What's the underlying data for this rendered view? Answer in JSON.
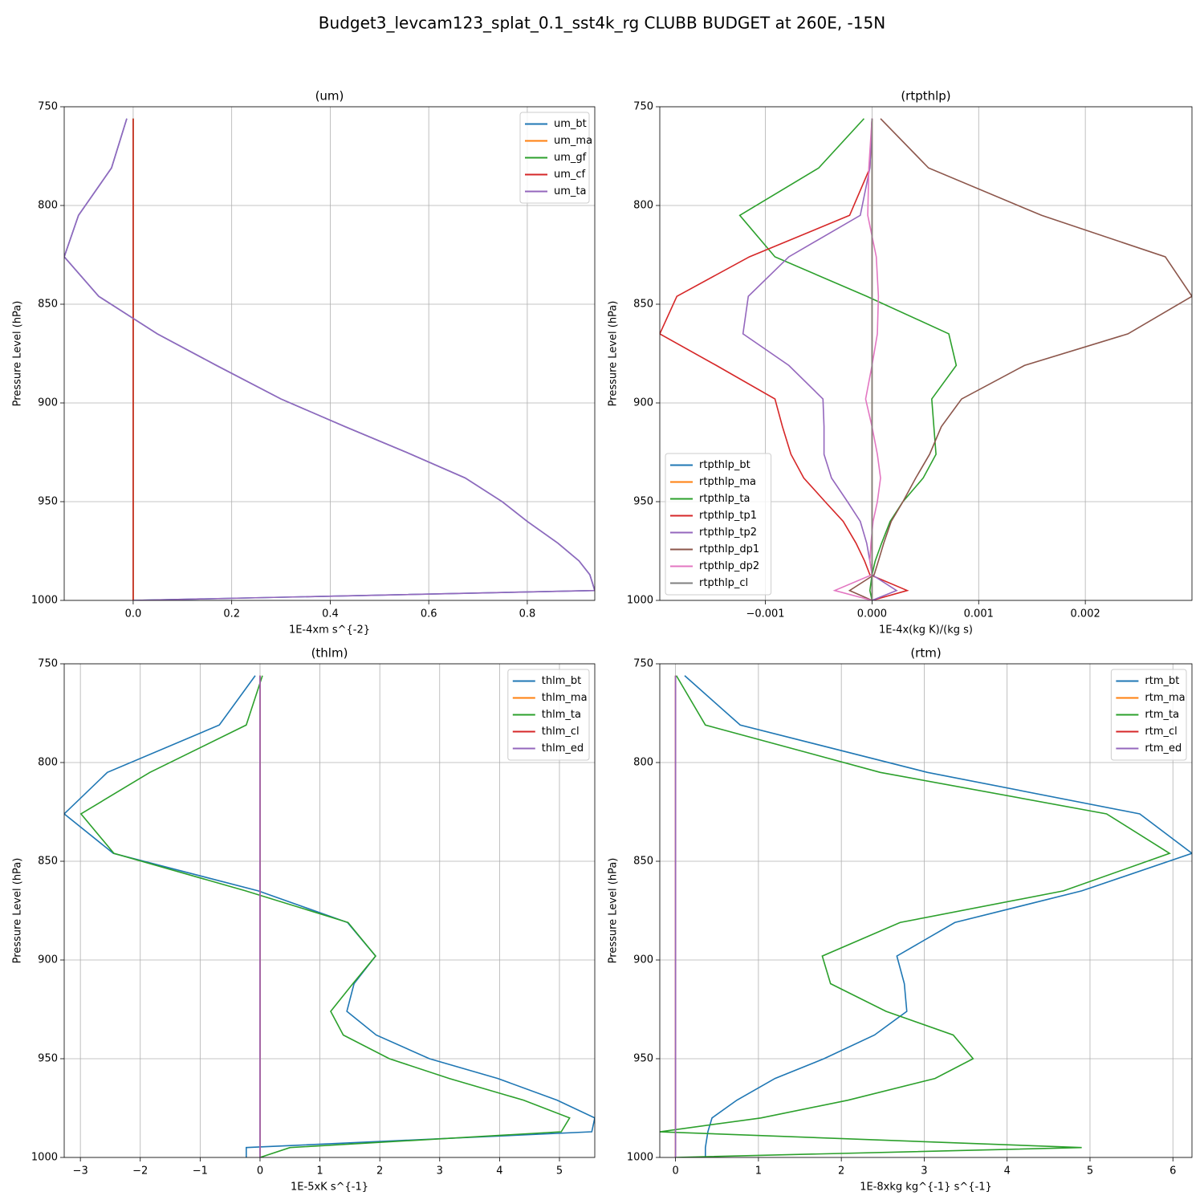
{
  "title": "Budget3_levcam123_splat_0.1_sst4k_rg CLUBB BUDGET at 260E, -15N",
  "chart_data": [
    {
      "type": "line",
      "title": "(um)",
      "xlabel": "1E-4xm s^{-2}",
      "ylabel": "Pressure Level (hPa)",
      "y": [
        756,
        781,
        805,
        826,
        846,
        865,
        881,
        898,
        912,
        926,
        938,
        950,
        960,
        971,
        980,
        987,
        995,
        1000
      ],
      "xlim": [
        -0.14,
        0.937
      ],
      "xticks": [
        {
          "value": 0,
          "label": "0.0"
        },
        0.2,
        0.4,
        0.6,
        0.8
      ],
      "ylim": [
        1000,
        750
      ],
      "yticks": [
        750,
        800,
        850,
        900,
        950,
        1000
      ],
      "grid": true,
      "legend": "upper right",
      "series": [
        {
          "name": "um_bt",
          "color": "#1f77b4",
          "values": [
            -0.013,
            -0.044,
            -0.111,
            -0.14,
            -0.07,
            0.049,
            0.169,
            0.3,
            0.43,
            0.564,
            0.674,
            0.749,
            0.8,
            0.862,
            0.905,
            0.927,
            0.937,
            0
          ]
        },
        {
          "name": "um_ma",
          "color": "#ff7f0e",
          "values": [
            0,
            0,
            0,
            0,
            0,
            0,
            0,
            0,
            0,
            0,
            0,
            0,
            0,
            0,
            0,
            0,
            0,
            0
          ]
        },
        {
          "name": "um_gf",
          "color": "#2ca02c",
          "values": [
            0,
            0,
            0,
            0,
            0,
            0,
            0,
            0,
            0,
            0,
            0,
            0,
            0,
            0,
            0,
            0,
            0,
            0
          ]
        },
        {
          "name": "um_cf",
          "color": "#d62728",
          "values": [
            0,
            0,
            0,
            0,
            0,
            0,
            0,
            0,
            0,
            0,
            0,
            0,
            0,
            0,
            0,
            0,
            0,
            0
          ]
        },
        {
          "name": "um_ta",
          "color": "#9467bd",
          "values": [
            -0.013,
            -0.044,
            -0.111,
            -0.14,
            -0.07,
            0.049,
            0.169,
            0.3,
            0.43,
            0.564,
            0.674,
            0.749,
            0.8,
            0.862,
            0.905,
            0.927,
            0.937,
            0
          ]
        }
      ]
    },
    {
      "type": "line",
      "title": "(rtpthlp)",
      "xlabel": "1E-4x(kg K)/(kg s)",
      "ylabel": "Pressure Level (hPa)",
      "y": [
        756,
        781,
        805,
        826,
        846,
        865,
        881,
        898,
        912,
        926,
        938,
        950,
        960,
        971,
        980,
        987,
        995,
        1000
      ],
      "xlim": [
        -0.00199,
        0.003
      ],
      "xticks": [
        {
          "value": -0.001,
          "label": "−0.001"
        },
        {
          "value": 0,
          "label": "0.000"
        },
        0.001,
        0.002
      ],
      "ylim": [
        1000,
        750
      ],
      "yticks": [
        750,
        800,
        850,
        900,
        950,
        1000
      ],
      "grid": true,
      "legend": "lower left",
      "series": [
        {
          "name": "rtpthlp_bt",
          "color": "#1f77b4",
          "values": [
            0,
            0,
            0,
            0,
            0,
            0,
            0,
            0,
            0,
            0,
            0,
            0,
            0,
            0,
            0,
            0,
            0,
            0
          ]
        },
        {
          "name": "rtpthlp_ma",
          "color": "#ff7f0e",
          "values": [
            0,
            0,
            0,
            0,
            0,
            0,
            0,
            0,
            0,
            0,
            0,
            0,
            0,
            0,
            0,
            0,
            0,
            0
          ]
        },
        {
          "name": "rtpthlp_ta",
          "color": "#2ca02c",
          "values": [
            -7.5e-05,
            -0.0005,
            -0.00124,
            -0.00091,
            -5e-05,
            0.00072,
            0.00079,
            0.00056,
            0.00058,
            0.0006,
            0.00048,
            0.00029,
            0.00017,
            9e-05,
            3e-05,
            0,
            -2e-05,
            0
          ]
        },
        {
          "name": "rtpthlp_tp1",
          "color": "#d62728",
          "values": [
            0,
            -2e-05,
            -0.00021,
            -0.00115,
            -0.00183,
            -0.00199,
            -0.00146,
            -0.00091,
            -0.00084,
            -0.00076,
            -0.00064,
            -0.00044,
            -0.00027,
            -0.00015,
            -7e-05,
            -2e-05,
            0.00033,
            0
          ]
        },
        {
          "name": "rtpthlp_tp2",
          "color": "#9467bd",
          "values": [
            0,
            -2e-05,
            -0.00011,
            -0.00078,
            -0.00116,
            -0.00121,
            -0.00078,
            -0.00046,
            -0.00045,
            -0.00045,
            -0.00038,
            -0.00023,
            -0.00011,
            -5e-05,
            -2e-05,
            0,
            0.00023,
            0
          ]
        },
        {
          "name": "rtpthlp_dp1",
          "color": "#8c564b",
          "values": [
            8e-05,
            0.00053,
            0.00159,
            0.00275,
            0.003,
            0.0024,
            0.00143,
            0.00084,
            0.00065,
            0.00054,
            0.00041,
            0.00029,
            0.00018,
            0.00011,
            6e-05,
            2e-05,
            -0.00021,
            0
          ]
        },
        {
          "name": "rtpthlp_dp2",
          "color": "#e377c2",
          "values": [
            0,
            -3e-05,
            -4e-05,
            4e-05,
            6e-05,
            5e-05,
            0,
            -6e-05,
            0,
            5e-05,
            8e-05,
            5e-05,
            1e-05,
            -1e-05,
            -2e-05,
            0,
            -0.00035,
            0
          ]
        },
        {
          "name": "rtpthlp_cl",
          "color": "#7f7f7f",
          "values": [
            0,
            0,
            0,
            0,
            0,
            0,
            0,
            0,
            0,
            0,
            0,
            0,
            0,
            0,
            0,
            0,
            0,
            0
          ]
        }
      ]
    },
    {
      "type": "line",
      "title": "(thlm)",
      "xlabel": "1E-5xK s^{-1}",
      "ylabel": "Pressure Level (hPa)",
      "y": [
        756,
        781,
        805,
        826,
        846,
        865,
        881,
        898,
        912,
        926,
        938,
        950,
        960,
        971,
        980,
        987,
        995,
        1000
      ],
      "xlim": [
        -3.27,
        5.59
      ],
      "xticks": [
        {
          "value": -3,
          "label": "−3"
        },
        {
          "value": -2,
          "label": "−2"
        },
        {
          "value": -1,
          "label": "−1"
        },
        0,
        1,
        2,
        3,
        4,
        5
      ],
      "ylim": [
        1000,
        750
      ],
      "yticks": [
        750,
        800,
        850,
        900,
        950,
        1000
      ],
      "grid": true,
      "legend": "upper right",
      "series": [
        {
          "name": "thlm_bt",
          "color": "#1f77b4",
          "values": [
            -0.08,
            -0.68,
            -2.55,
            -3.27,
            -2.45,
            -0.03,
            1.46,
            1.93,
            1.57,
            1.45,
            1.94,
            2.83,
            3.97,
            4.96,
            5.59,
            5.54,
            -0.23,
            -0.23
          ]
        },
        {
          "name": "thlm_ma",
          "color": "#ff7f0e",
          "values": [
            0,
            0,
            0,
            0,
            0,
            0,
            0,
            0,
            0,
            0,
            0,
            0,
            0,
            0,
            0,
            0,
            0,
            0
          ]
        },
        {
          "name": "thlm_ta",
          "color": "#2ca02c",
          "values": [
            0.04,
            -0.23,
            -1.84,
            -2.99,
            -2.44,
            -0.24,
            1.47,
            1.93,
            1.55,
            1.18,
            1.39,
            2.16,
            3.16,
            4.4,
            5.17,
            5.03,
            0.5,
            0
          ]
        },
        {
          "name": "thlm_cl",
          "color": "#d62728",
          "values": [
            0,
            0,
            0,
            0,
            0,
            0,
            0,
            0,
            0,
            0,
            0,
            0,
            0,
            0,
            0,
            0,
            0,
            0
          ]
        },
        {
          "name": "thlm_ed",
          "color": "#9467bd",
          "values": [
            0,
            0,
            0,
            0,
            0,
            0,
            0,
            0,
            0,
            0,
            0,
            0,
            0,
            0,
            0,
            0,
            0,
            0
          ]
        }
      ]
    },
    {
      "type": "line",
      "title": "(rtm)",
      "xlabel": "1E-8xkg kg^{-1} s^{-1}",
      "ylabel": "Pressure Level (hPa)",
      "y": [
        756,
        781,
        805,
        826,
        846,
        865,
        881,
        898,
        912,
        926,
        938,
        950,
        960,
        971,
        980,
        987,
        995,
        1000
      ],
      "xlim": [
        -0.19,
        6.23
      ],
      "xticks": [
        0,
        1,
        2,
        3,
        4,
        5,
        6
      ],
      "ylim": [
        1000,
        750
      ],
      "yticks": [
        750,
        800,
        850,
        900,
        950,
        1000
      ],
      "grid": true,
      "legend": "upper right",
      "series": [
        {
          "name": "rtm_bt",
          "color": "#1f77b4",
          "values": [
            0.11,
            0.78,
            3.04,
            5.6,
            6.23,
            4.9,
            3.37,
            2.67,
            2.76,
            2.79,
            2.4,
            1.79,
            1.2,
            0.74,
            0.44,
            0.39,
            0.36,
            0.36
          ]
        },
        {
          "name": "rtm_ma",
          "color": "#ff7f0e",
          "values": [
            0,
            0,
            0,
            0,
            0,
            0,
            0,
            0,
            0,
            0,
            0,
            0,
            0,
            0,
            0,
            0,
            0,
            0
          ]
        },
        {
          "name": "rtm_ta",
          "color": "#2ca02c",
          "values": [
            0.01,
            0.36,
            2.47,
            5.2,
            5.96,
            4.68,
            2.71,
            1.77,
            1.87,
            2.54,
            3.35,
            3.59,
            3.13,
            2.08,
            1.03,
            -0.19,
            4.9,
            0
          ]
        },
        {
          "name": "rtm_cl",
          "color": "#d62728",
          "values": [
            0,
            0,
            0,
            0,
            0,
            0,
            0,
            0,
            0,
            0,
            0,
            0,
            0,
            0,
            0,
            0,
            0,
            0
          ]
        },
        {
          "name": "rtm_ed",
          "color": "#9467bd",
          "values": [
            0,
            0,
            0,
            0,
            0,
            0,
            0,
            0,
            0,
            0,
            0,
            0,
            0,
            0,
            0,
            0,
            0,
            0
          ]
        }
      ]
    }
  ]
}
